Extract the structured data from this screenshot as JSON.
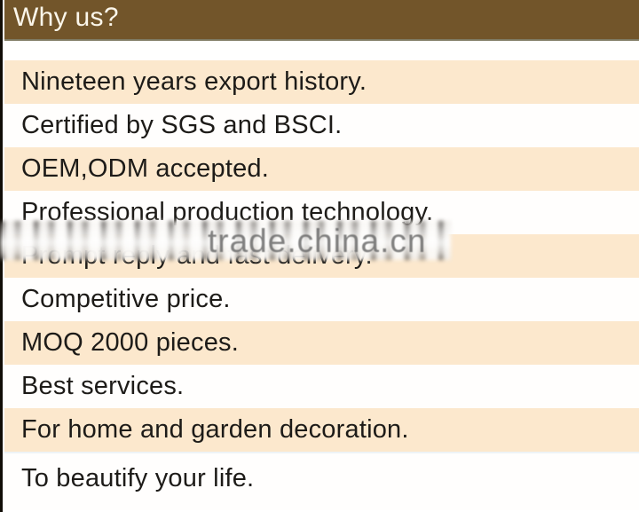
{
  "header": {
    "title": "Why us?"
  },
  "rows": [
    {
      "label": "Nineteen years export history."
    },
    {
      "label": "Certified by SGS and BSCI."
    },
    {
      "label": "OEM,ODM accepted."
    },
    {
      "label": "Professional production technology."
    },
    {
      "label": "Prompt reply and fast delivery."
    },
    {
      "label": "Competitive price."
    },
    {
      "label": "MOQ 2000 pieces."
    },
    {
      "label": "Best services."
    },
    {
      "label": "For home and garden decoration."
    },
    {
      "label": "To beautify your life."
    }
  ],
  "watermark": {
    "text": "trade.china.cn"
  },
  "colors": {
    "header_bg": "#72552a",
    "header_fg": "#fbf6ea",
    "row_peach": "#fce8cd",
    "row_white": "#fffefd",
    "text_dark": "#1d1b18",
    "stripe_color": "#110d07"
  }
}
